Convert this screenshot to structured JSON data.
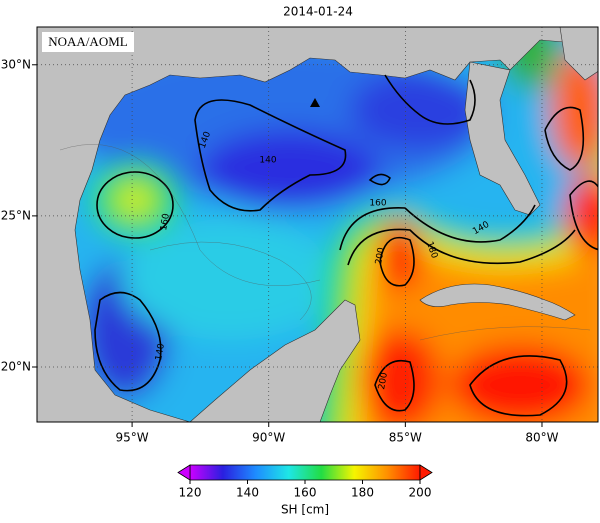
{
  "map": {
    "title": "2014-01-24",
    "credit": "NOAA/AOML",
    "lonlim": [
      -98.48,
      -77.95
    ],
    "latlim": [
      18.18,
      31.25
    ],
    "lonticks": [
      {
        "value": -95,
        "label": "95°W"
      },
      {
        "value": -90,
        "label": "90°W"
      },
      {
        "value": -85,
        "label": "85°W"
      },
      {
        "value": -80,
        "label": "80°W"
      }
    ],
    "latticks": [
      {
        "value": 30,
        "label": "30°N"
      },
      {
        "value": 25,
        "label": "25°N"
      },
      {
        "value": 20,
        "label": "20°N"
      }
    ],
    "contour_labels": [
      140,
      140,
      160,
      160,
      180,
      200,
      140,
      200,
      140
    ],
    "colorbar": {
      "label": "SH [cm]",
      "lim": [
        120,
        200
      ],
      "ticks": [
        120,
        140,
        160,
        180,
        200
      ],
      "colors": [
        "#cc00ff",
        "#2a1fe0",
        "#1e8cff",
        "#1ee6e6",
        "#22dd44",
        "#f5f500",
        "#ff9000",
        "#ff1a00"
      ]
    }
  }
}
